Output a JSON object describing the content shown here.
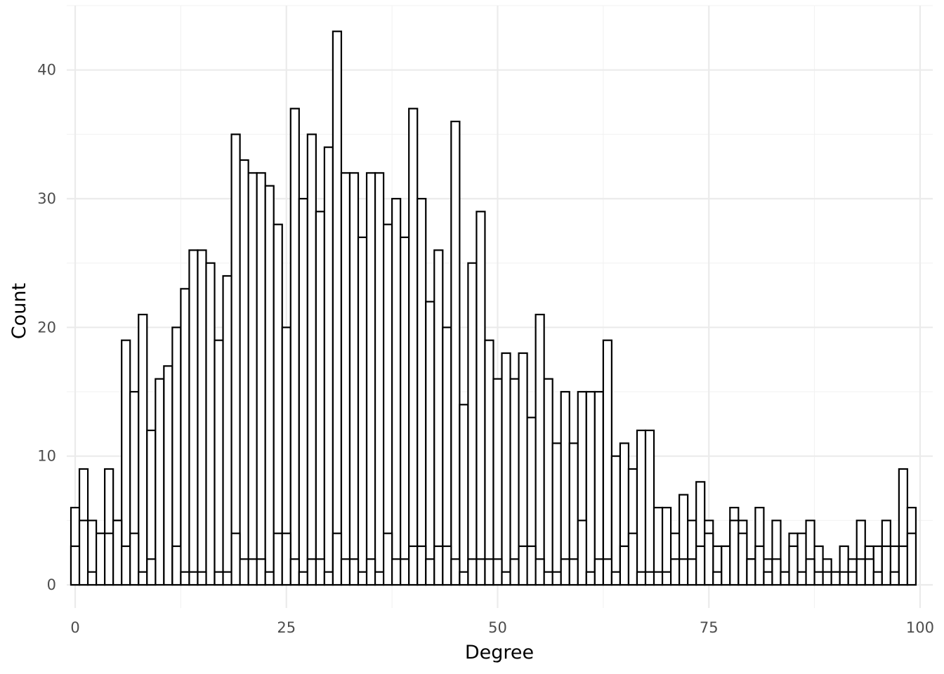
{
  "chart_data": {
    "type": "bar",
    "subtype": "histogram",
    "title": "",
    "xlabel": "Degree",
    "ylabel": "Count",
    "bin_width": 1,
    "x_bin_starts": [
      0,
      1,
      2,
      3,
      4,
      5,
      6,
      7,
      8,
      9,
      10,
      11,
      12,
      13,
      14,
      15,
      16,
      17,
      18,
      19,
      20,
      21,
      22,
      23,
      24,
      25,
      26,
      27,
      28,
      29,
      30,
      31,
      32,
      33,
      34,
      35,
      36,
      37,
      38,
      39,
      40,
      41,
      42,
      43,
      44,
      45,
      46,
      47,
      48,
      49,
      50,
      51,
      52,
      53,
      54,
      55,
      56,
      57,
      58,
      59,
      60,
      61,
      62,
      63,
      64,
      65,
      66,
      67,
      68,
      69,
      70,
      71,
      72,
      73,
      74,
      75,
      76,
      77,
      78,
      79,
      80,
      81,
      82,
      83,
      84,
      85,
      86,
      87,
      88,
      89,
      90,
      91,
      92,
      93,
      94,
      95,
      96,
      97,
      98,
      99
    ],
    "series": [
      {
        "values": [
          6,
          9,
          5,
          4,
          9,
          5,
          19,
          15,
          21,
          12,
          16,
          17,
          20,
          23,
          26,
          26,
          25,
          19,
          24,
          35,
          33,
          32,
          32,
          31,
          28,
          20,
          37,
          30,
          35,
          29,
          34,
          43,
          32,
          32,
          27,
          32,
          32,
          28,
          30,
          27,
          37,
          30,
          22,
          26,
          20,
          36,
          14,
          25,
          29,
          19,
          16,
          18,
          16,
          18,
          13,
          21,
          16,
          11,
          15,
          11,
          15,
          15,
          15,
          19,
          10,
          11,
          9,
          12,
          12,
          6,
          6,
          4,
          7,
          5,
          8,
          5,
          3,
          3,
          6,
          5,
          2,
          6,
          2,
          5,
          1,
          4,
          4,
          5,
          3,
          2,
          1,
          3,
          2,
          5,
          3,
          3,
          5,
          3,
          9,
          6
        ]
      },
      {
        "values": [
          3,
          5,
          1,
          4,
          4,
          5,
          3,
          4,
          1,
          2,
          0,
          0,
          3,
          1,
          1,
          1,
          0,
          1,
          1,
          4,
          2,
          2,
          2,
          1,
          4,
          4,
          2,
          1,
          2,
          2,
          1,
          4,
          2,
          2,
          1,
          2,
          1,
          4,
          2,
          2,
          3,
          3,
          2,
          3,
          3,
          2,
          1,
          2,
          2,
          2,
          2,
          1,
          2,
          3,
          3,
          2,
          1,
          1,
          2,
          2,
          5,
          1,
          2,
          2,
          1,
          3,
          4,
          1,
          1,
          1,
          1,
          2,
          2,
          2,
          3,
          4,
          1,
          3,
          5,
          4,
          2,
          3,
          1,
          2,
          1,
          3,
          1,
          2,
          1,
          1,
          1,
          1,
          1,
          2,
          2,
          1,
          3,
          1,
          3,
          4
        ]
      }
    ],
    "xlim": [
      -1,
      101.5
    ],
    "ylim": [
      -1.8,
      45
    ],
    "x_ticks": [
      "0",
      "25",
      "50",
      "75",
      "100"
    ],
    "y_ticks": [
      "0",
      "10",
      "20",
      "30",
      "40"
    ],
    "grid": true,
    "legend": "none",
    "colors": {
      "bar_fill": "#ffffff",
      "bar_stroke": "#000000",
      "grid": "#ebebeb",
      "tick_text": "#4d4d4d"
    }
  }
}
